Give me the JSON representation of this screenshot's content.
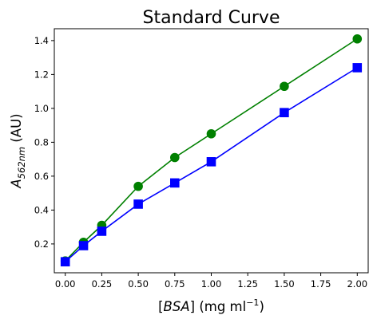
{
  "chart_data": {
    "type": "line",
    "title": "Standard Curve",
    "xlabel": "[BSA] (mg ml⁻¹)",
    "ylabel": "A562nm (AU)",
    "xlim": [
      -0.075,
      2.075
    ],
    "ylim": [
      0.03,
      1.47
    ],
    "xticks": [
      0.0,
      0.25,
      0.5,
      0.75,
      1.0,
      1.25,
      1.5,
      1.75,
      2.0
    ],
    "xtick_labels": [
      "0.00",
      "0.25",
      "0.50",
      "0.75",
      "1.00",
      "1.25",
      "1.50",
      "1.75",
      "2.00"
    ],
    "yticks": [
      0.2,
      0.4,
      0.6,
      0.8,
      1.0,
      1.2,
      1.4
    ],
    "ytick_labels": [
      "0.2",
      "0.4",
      "0.6",
      "0.8",
      "1.0",
      "1.2",
      "1.4"
    ],
    "grid": false,
    "legend": "none",
    "series": [
      {
        "color": "#008000",
        "marker": "circle",
        "x": [
          0.0,
          0.125,
          0.25,
          0.5,
          0.75,
          1.0,
          1.5,
          2.0
        ],
        "y": [
          0.1,
          0.21,
          0.31,
          0.54,
          0.71,
          0.85,
          1.13,
          1.41
        ]
      },
      {
        "color": "#0000ff",
        "marker": "square",
        "x": [
          0.0,
          0.125,
          0.25,
          0.5,
          0.75,
          1.0,
          1.5,
          2.0
        ],
        "y": [
          0.095,
          0.19,
          0.275,
          0.435,
          0.56,
          0.685,
          0.975,
          1.24
        ]
      }
    ]
  }
}
